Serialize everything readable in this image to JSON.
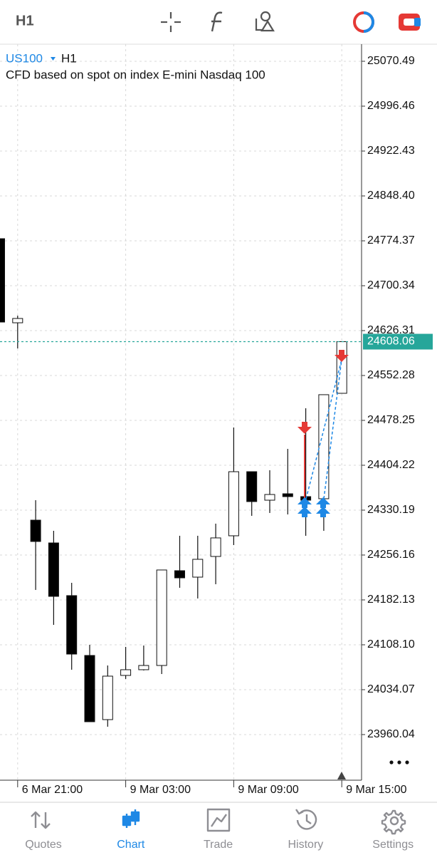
{
  "toolbar": {
    "timeframe": "H1"
  },
  "chart_data": {
    "type": "candlestick",
    "symbol": "US100",
    "timeframe": "H1",
    "description": "CFD based on spot on index E-mini Nasdaq 100",
    "categories": [
      null,
      "6 Mar 21:00",
      null,
      null,
      null,
      null,
      null,
      "9 Mar 03:00",
      null,
      null,
      null,
      null,
      null,
      "9 Mar 09:00",
      null,
      null,
      null,
      null,
      null,
      "9 Mar 15:00"
    ],
    "open": [
      24777.9,
      24639.2,
      24313.7,
      24276.1,
      24189.2,
      24090.5,
      23984.7,
      24057.6,
      24067.0,
      24074.0,
      24230.3,
      24219.7,
      24253.8,
      24287.9,
      24393.6,
      24346.6,
      24357.2,
      24352.5,
      24349.0,
      24522.9
    ],
    "high": [
      24777.9,
      24650.9,
      24346.6,
      24296.1,
      24210.3,
      24108.1,
      24074.0,
      24104.6,
      24106.9,
      24231.5,
      24287.9,
      24287.9,
      24307.9,
      24466.5,
      24393.6,
      24396.0,
      24431.2,
      24498.2,
      24520.6,
      24608.06
    ],
    "low": [
      24640.4,
      24596.9,
      24198.6,
      24141.0,
      24067.0,
      23981.2,
      23973.0,
      24051.7,
      24065.8,
      24059.9,
      24202.1,
      24184.5,
      24208.0,
      24272.6,
      24320.8,
      24325.5,
      24323.1,
      24287.9,
      24296.1,
      24522.9
    ],
    "close": [
      24640.4,
      24646.3,
      24278.5,
      24188.0,
      24092.8,
      23981.2,
      24056.4,
      24067.0,
      24074.0,
      24231.5,
      24218.5,
      24249.1,
      24284.4,
      24393.6,
      24344.3,
      24356.0,
      24352.5,
      24346.6,
      24520.6,
      24608.06
    ],
    "up_color": "#ffffff",
    "down_color": "#000000",
    "ylim": [
      23884.8,
      25098.7
    ],
    "yticks": [
      25070.49,
      24996.46,
      24922.43,
      {
        "value": 24848.4,
        "label": "24848.40"
      },
      24774.37,
      24700.34,
      24626.31,
      24552.28,
      24478.25,
      24404.22,
      24330.19,
      24256.16,
      24182.13,
      {
        "value": 24108.1,
        "label": "24108.10"
      },
      24034.07,
      23960.04
    ],
    "current_price": 24608.06,
    "current_price_color": "#26a69a",
    "grid": true
  },
  "tabs": [
    {
      "label": "Quotes",
      "active": false
    },
    {
      "label": "Chart",
      "active": true
    },
    {
      "label": "Trade",
      "active": false
    },
    {
      "label": "History",
      "active": false
    },
    {
      "label": "Settings",
      "active": false
    }
  ]
}
